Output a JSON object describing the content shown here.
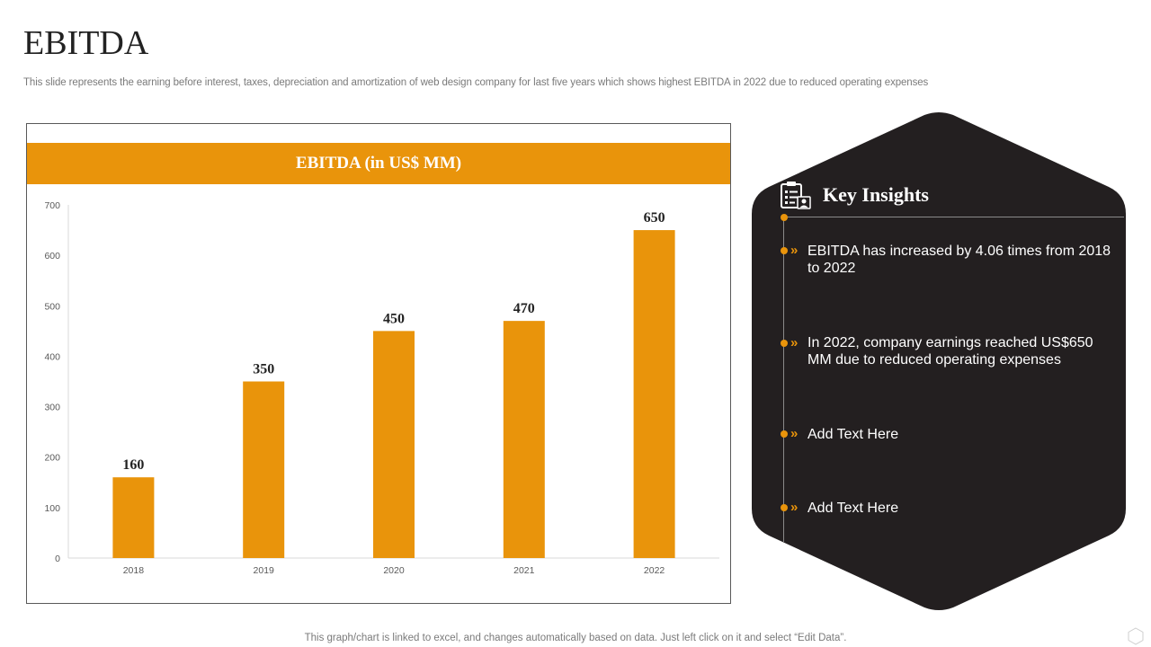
{
  "page": {
    "title": "EBITDA",
    "subtitle": "This slide represents the earning before interest, taxes, depreciation and amortization of web design company for last five  years which shows highest EBITDA in 2022 due to reduced operating expenses",
    "footer_note": "This graph/chart is linked to excel,  and changes automatically based on data. Just left click on it and select “Edit Data”."
  },
  "colors": {
    "accent": "#E9940B",
    "dark_panel": "#231F20",
    "text_dark": "#222222",
    "muted": "#7a7a7a"
  },
  "chart_data": {
    "type": "bar",
    "title": "EBITDA (in US$ MM)",
    "categories": [
      "2018",
      "2019",
      "2020",
      "2021",
      "2022"
    ],
    "values": [
      160,
      350,
      450,
      470,
      650
    ],
    "data_labels": [
      "160",
      "350",
      "450",
      "470",
      "650"
    ],
    "yticks": [
      "0",
      "100",
      "200",
      "300",
      "400",
      "500",
      "600",
      "700"
    ],
    "ylim": [
      0,
      700
    ],
    "xlabel": "",
    "ylabel": "",
    "grid": false,
    "legend": "none"
  },
  "insights": {
    "title": "Key Insights",
    "icon": "clipboard-user-icon",
    "items": [
      {
        "text": "EBITDA has increased by 4.06 times from 2018 to 2022"
      },
      {
        "text": "In 2022, company earnings reached US$650 MM due to reduced operating expenses"
      },
      {
        "text": "Add Text Here"
      },
      {
        "text": "Add Text Here"
      }
    ]
  }
}
